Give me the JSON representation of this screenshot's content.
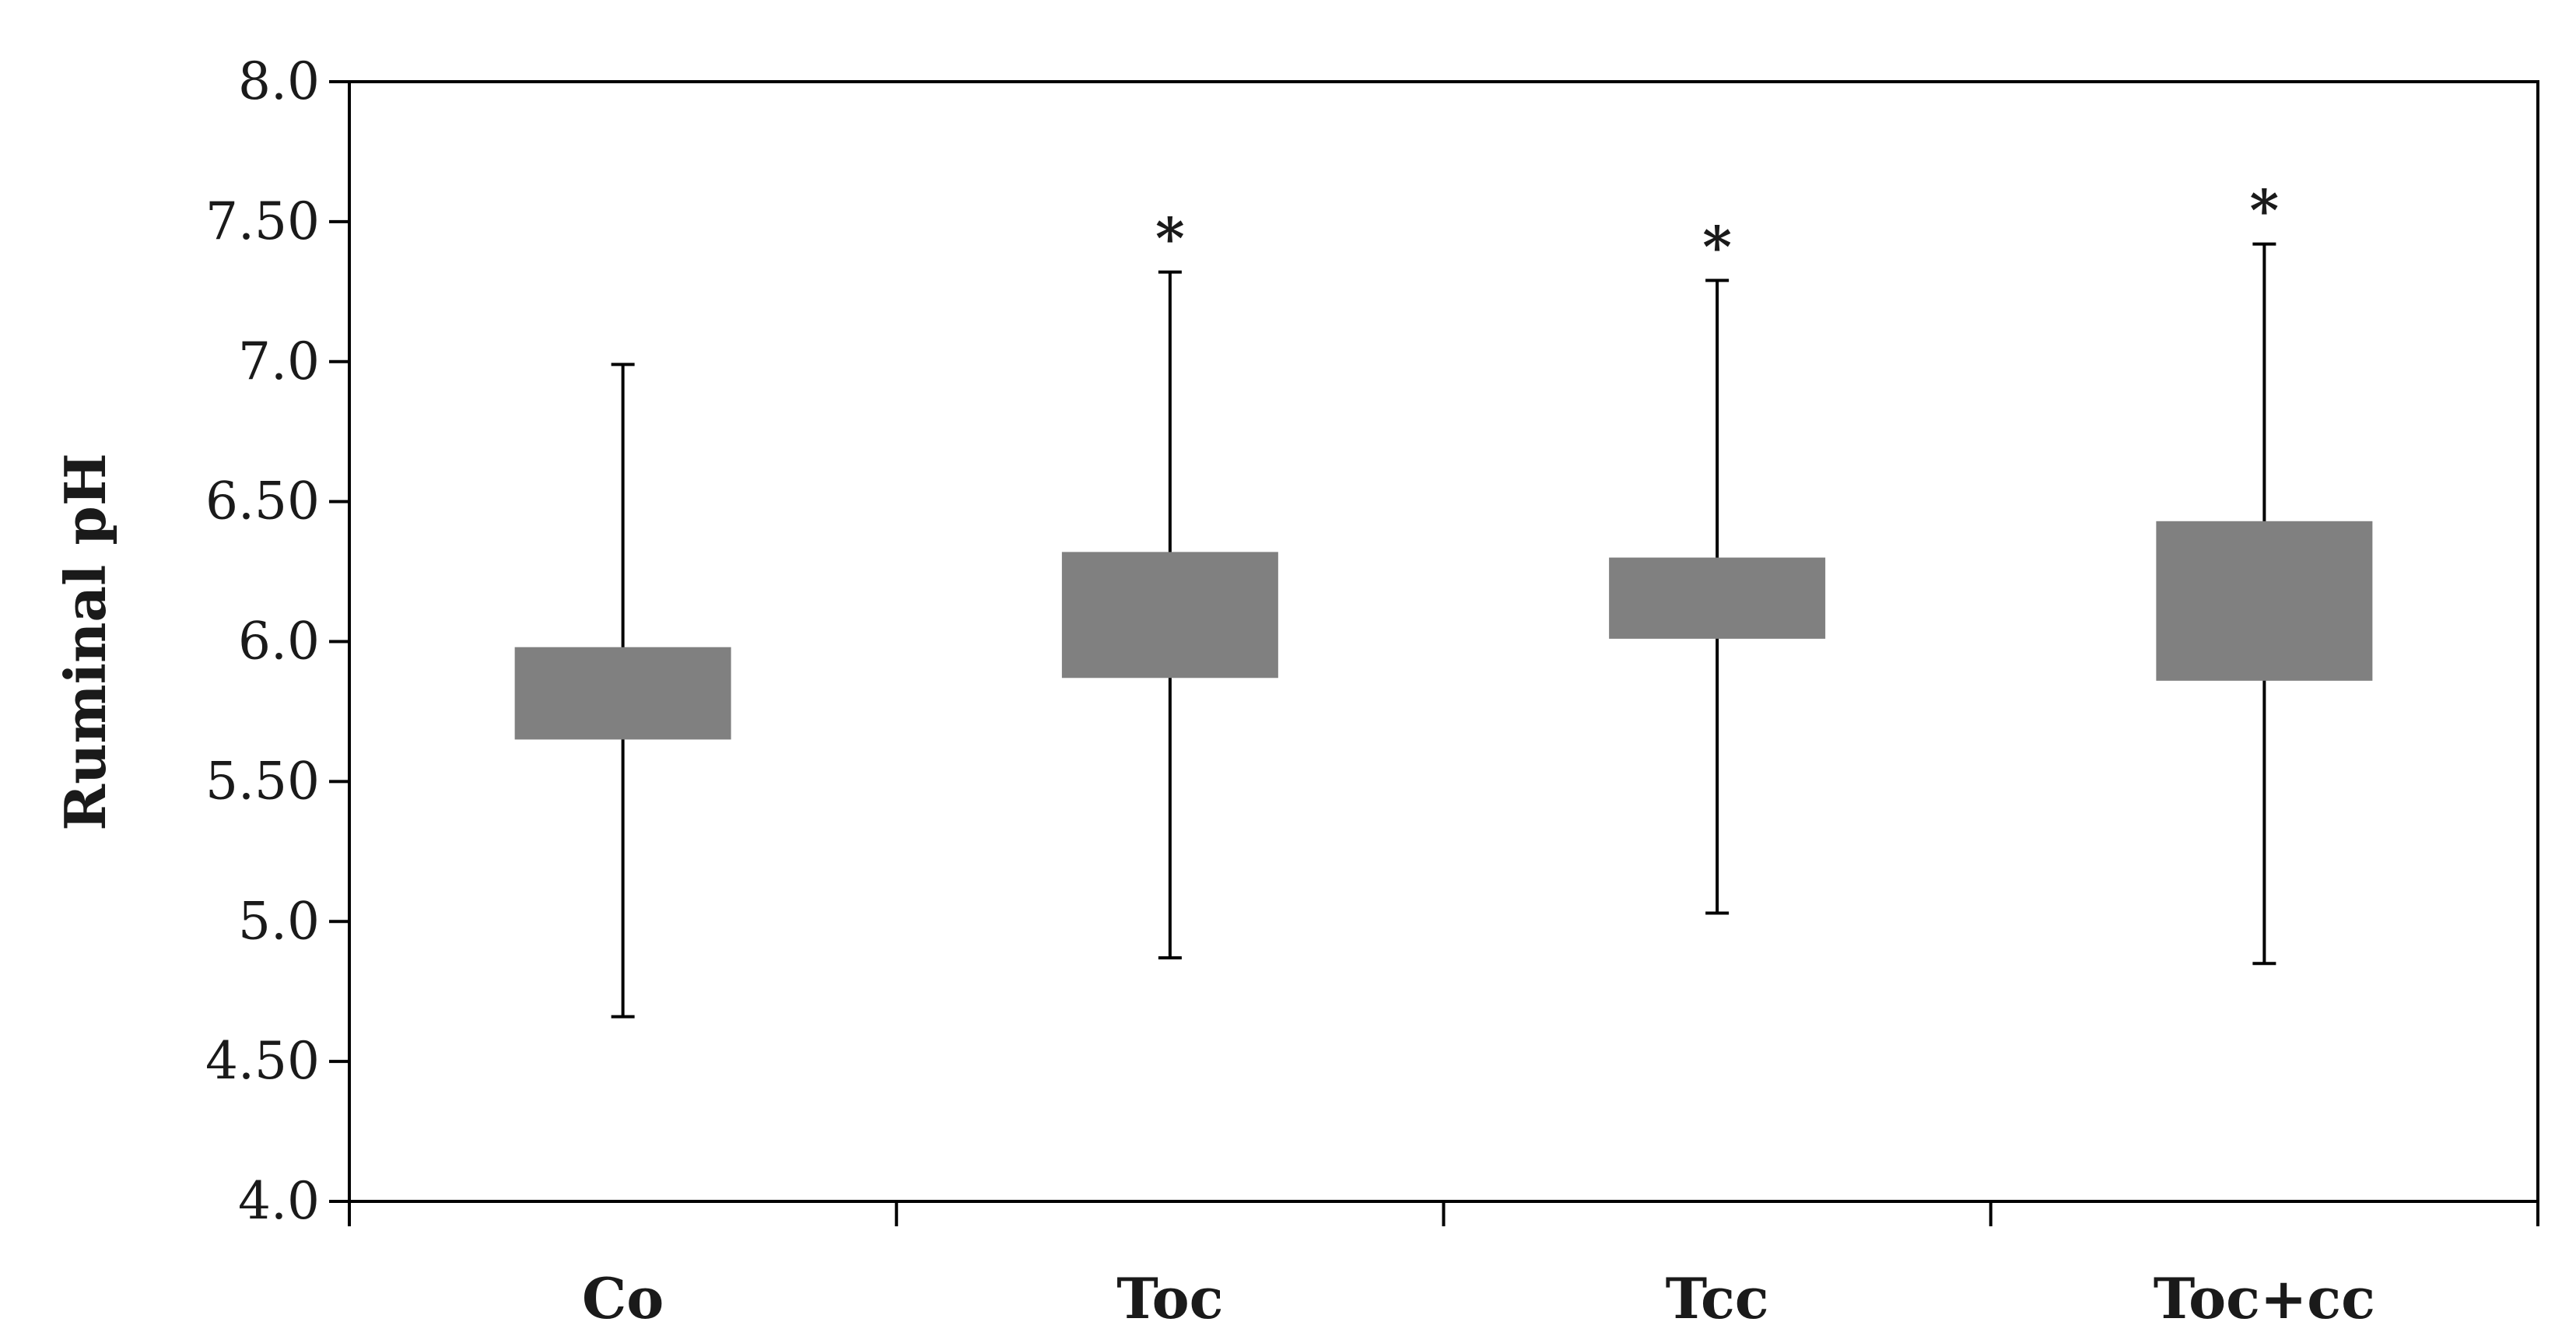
{
  "chart_data": {
    "type": "box",
    "title": "",
    "xlabel": "",
    "ylabel": "Ruminal pH",
    "ylim": [
      4.0,
      8.0
    ],
    "yticks": [
      "4.0",
      "4.50",
      "5.0",
      "5.50",
      "6.0",
      "6.50",
      "7.0",
      "7.50",
      "8.0"
    ],
    "ytick_values": [
      4.0,
      4.5,
      5.0,
      5.5,
      6.0,
      6.5,
      7.0,
      7.5,
      8.0
    ],
    "categories": [
      "Co",
      "Toc",
      "Tcc",
      "Toc+cc"
    ],
    "boxes": [
      {
        "category": "Co",
        "min": 4.66,
        "q1": 5.65,
        "q3": 5.98,
        "max": 6.99,
        "annotation": ""
      },
      {
        "category": "Toc",
        "min": 4.87,
        "q1": 5.87,
        "q3": 6.32,
        "max": 7.32,
        "annotation": "*"
      },
      {
        "category": "Tcc",
        "min": 5.03,
        "q1": 6.01,
        "q3": 6.3,
        "max": 7.29,
        "annotation": "*"
      },
      {
        "category": "Toc+cc",
        "min": 4.85,
        "q1": 5.86,
        "q3": 6.43,
        "max": 7.42,
        "annotation": "*"
      }
    ],
    "box_color": "#808080",
    "grid": false,
    "legend": "none"
  }
}
